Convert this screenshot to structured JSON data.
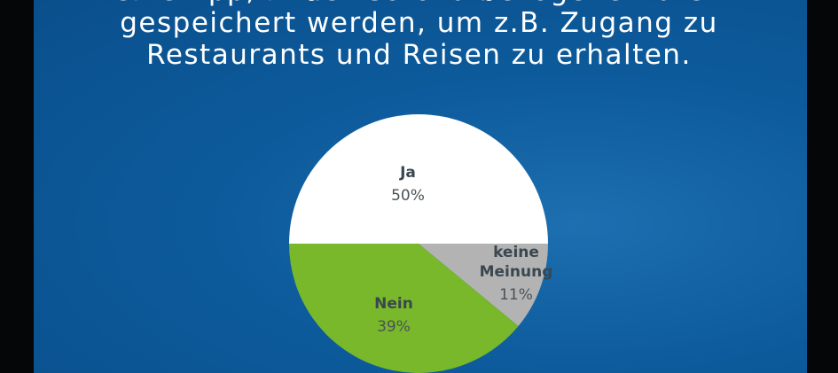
{
  "title_lines": [
    "eine App, in der Corona bezogene Daten",
    "gespeichert werden, um z.B. Zugang zu",
    "Restaurants und Reisen zu erhalten."
  ],
  "chart_data": {
    "type": "pie",
    "title": "eine App, in der Corona bezogene Daten gespeichert werden, um z.B. Zugang zu Restaurants und Reisen zu erhalten.",
    "slices": [
      {
        "label": "Ja",
        "value": 50,
        "display": "50%",
        "color": "#ffffff"
      },
      {
        "label": "keine Meinung",
        "value": 11,
        "display": "11%",
        "color": "#b3b3b3"
      },
      {
        "label": "Nein",
        "value": 39,
        "display": "39%",
        "color": "#78b82a"
      }
    ]
  }
}
